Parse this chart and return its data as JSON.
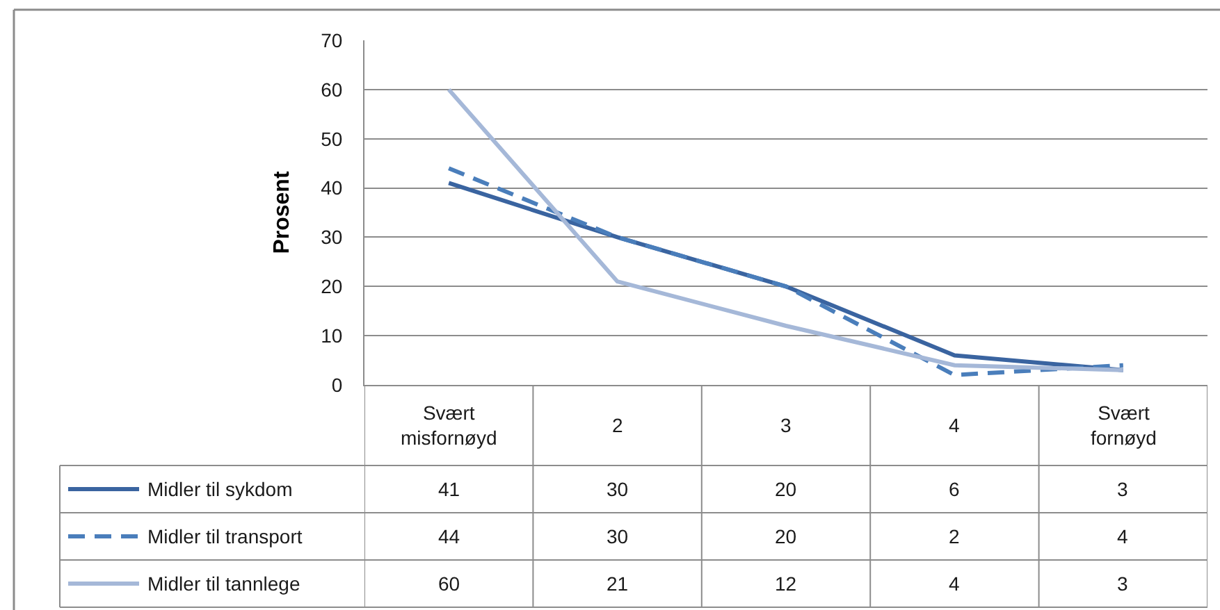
{
  "chart_data": {
    "type": "line",
    "ylabel": "Prosent",
    "categories": [
      "Svært misfornøyd",
      "2",
      "3",
      "4",
      "Svært fornøyd"
    ],
    "series": [
      {
        "name": "Midler til sykdom",
        "color": "#3a64a0",
        "line_style": "solid",
        "values": [
          41,
          30,
          20,
          6,
          3
        ]
      },
      {
        "name": "Midler til transport",
        "color": "#4a7ebb",
        "line_style": "dashed",
        "values": [
          44,
          30,
          20,
          2,
          4
        ]
      },
      {
        "name": "Midler til tannlege",
        "color": "#a5b8d8",
        "line_style": "solid",
        "values": [
          60,
          21,
          12,
          4,
          3
        ]
      }
    ],
    "ylim": [
      0,
      70
    ],
    "yticks": [
      0,
      10,
      20,
      30,
      40,
      50,
      60,
      70
    ],
    "grid": "y",
    "data_labels": true,
    "legend": "bottom left"
  }
}
